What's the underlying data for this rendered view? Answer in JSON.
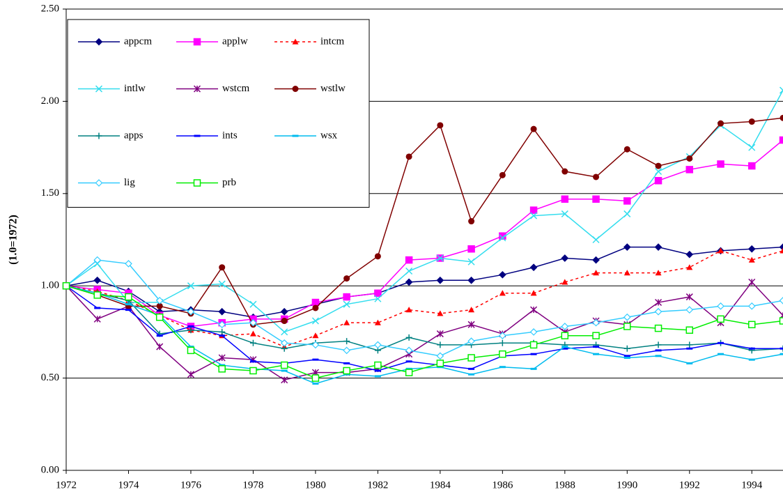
{
  "chart_data": {
    "type": "line",
    "y_label": "(1.0=1972)",
    "x": [
      1972,
      1973,
      1974,
      1975,
      1976,
      1977,
      1978,
      1979,
      1980,
      1981,
      1982,
      1983,
      1984,
      1985,
      1986,
      1987,
      1988,
      1989,
      1990,
      1991,
      1992,
      1993,
      1994,
      1995
    ],
    "xlim": [
      1972,
      1995
    ],
    "xticks": [
      1972,
      1974,
      1976,
      1978,
      1980,
      1982,
      1984,
      1986,
      1988,
      1990,
      1992,
      1994
    ],
    "ylim": [
      0,
      2.5
    ],
    "yticks": [
      {
        "value": 0,
        "label": "0.00"
      },
      {
        "value": 0.5,
        "label": "0.50"
      },
      {
        "value": 1,
        "label": "1.00"
      },
      {
        "value": 1.5,
        "label": "1.50"
      },
      {
        "value": 2,
        "label": "2.00"
      },
      {
        "value": 2.5,
        "label": "2.50"
      }
    ],
    "grid": true,
    "legend": "upper left",
    "series": [
      {
        "name": "appcm",
        "color": "#000080",
        "marker": "diamond",
        "dashed": false,
        "values": [
          1.0,
          1.03,
          0.97,
          0.86,
          0.87,
          0.86,
          0.83,
          0.86,
          0.9,
          0.94,
          0.96,
          1.02,
          1.03,
          1.03,
          1.06,
          1.1,
          1.15,
          1.14,
          1.21,
          1.21,
          1.17,
          1.19,
          1.2,
          1.21
        ]
      },
      {
        "name": "applw",
        "color": "#ff00ff",
        "marker": "square",
        "dashed": false,
        "values": [
          1.0,
          0.98,
          0.96,
          0.84,
          0.78,
          0.8,
          0.82,
          0.82,
          0.91,
          0.94,
          0.96,
          1.14,
          1.15,
          1.2,
          1.27,
          1.41,
          1.47,
          1.47,
          1.46,
          1.57,
          1.63,
          1.66,
          1.65,
          1.79
        ]
      },
      {
        "name": "intcm",
        "color": "#ff0000",
        "marker": "triangle",
        "dashed": true,
        "values": [
          1.0,
          0.97,
          0.92,
          0.84,
          0.76,
          0.73,
          0.74,
          0.67,
          0.73,
          0.8,
          0.8,
          0.87,
          0.85,
          0.87,
          0.96,
          0.96,
          1.02,
          1.07,
          1.07,
          1.07,
          1.1,
          1.19,
          1.14,
          1.19
        ]
      },
      {
        "name": "intlw",
        "color": "#33ddee",
        "marker": "x",
        "dashed": false,
        "values": [
          1.0,
          1.12,
          0.91,
          0.91,
          1.0,
          1.01,
          0.9,
          0.75,
          0.81,
          0.9,
          0.93,
          1.08,
          1.15,
          1.13,
          1.26,
          1.38,
          1.39,
          1.25,
          1.39,
          1.62,
          1.7,
          1.87,
          1.75,
          2.06
        ]
      },
      {
        "name": "wstcm",
        "color": "#800080",
        "marker": "asterisk",
        "dashed": false,
        "values": [
          1.0,
          0.82,
          0.89,
          0.67,
          0.52,
          0.61,
          0.6,
          0.49,
          0.53,
          0.53,
          0.55,
          0.63,
          0.74,
          0.79,
          0.74,
          0.87,
          0.75,
          0.81,
          0.79,
          0.91,
          0.94,
          0.8,
          1.02,
          0.84
        ]
      },
      {
        "name": "wstlw",
        "color": "#800000",
        "marker": "circle",
        "dashed": false,
        "values": [
          1.0,
          0.95,
          0.89,
          0.89,
          0.85,
          1.1,
          0.79,
          0.81,
          0.88,
          1.04,
          1.16,
          1.7,
          1.87,
          1.35,
          1.6,
          1.85,
          1.62,
          1.59,
          1.74,
          1.65,
          1.69,
          1.88,
          1.89,
          1.91
        ]
      },
      {
        "name": "apps",
        "color": "#008080",
        "marker": "plus",
        "dashed": false,
        "values": [
          1.0,
          0.96,
          0.92,
          0.74,
          0.76,
          0.75,
          0.69,
          0.66,
          0.69,
          0.7,
          0.65,
          0.72,
          0.68,
          0.68,
          0.69,
          0.69,
          0.68,
          0.68,
          0.66,
          0.68,
          0.68,
          0.69,
          0.65,
          0.66
        ]
      },
      {
        "name": "ints",
        "color": "#0000ff",
        "marker": "dash",
        "dashed": false,
        "values": [
          1.0,
          0.88,
          0.87,
          0.73,
          0.78,
          0.73,
          0.59,
          0.58,
          0.6,
          0.58,
          0.54,
          0.59,
          0.57,
          0.55,
          0.62,
          0.63,
          0.66,
          0.67,
          0.62,
          0.65,
          0.66,
          0.69,
          0.66,
          0.66
        ]
      },
      {
        "name": "wsx",
        "color": "#00bbee",
        "marker": "dash",
        "dashed": false,
        "values": [
          1.0,
          0.96,
          0.9,
          0.84,
          0.67,
          0.57,
          0.55,
          0.54,
          0.47,
          0.52,
          0.51,
          0.55,
          0.56,
          0.52,
          0.56,
          0.55,
          0.67,
          0.63,
          0.61,
          0.62,
          0.58,
          0.63,
          0.6,
          0.63
        ]
      },
      {
        "name": "lig",
        "color": "#33ccff",
        "marker": "diamond-open",
        "dashed": false,
        "values": [
          1.0,
          1.14,
          1.12,
          0.92,
          0.86,
          0.79,
          0.8,
          0.69,
          0.68,
          0.65,
          0.68,
          0.65,
          0.62,
          0.7,
          0.73,
          0.75,
          0.78,
          0.8,
          0.83,
          0.86,
          0.87,
          0.89,
          0.89,
          0.92
        ]
      },
      {
        "name": "prb",
        "color": "#00ee00",
        "marker": "square-open",
        "dashed": false,
        "values": [
          1.0,
          0.95,
          0.94,
          0.83,
          0.65,
          0.55,
          0.54,
          0.57,
          0.5,
          0.54,
          0.57,
          0.53,
          0.58,
          0.61,
          0.63,
          0.68,
          0.73,
          0.73,
          0.78,
          0.77,
          0.76,
          0.82,
          0.79,
          0.81
        ]
      }
    ]
  }
}
